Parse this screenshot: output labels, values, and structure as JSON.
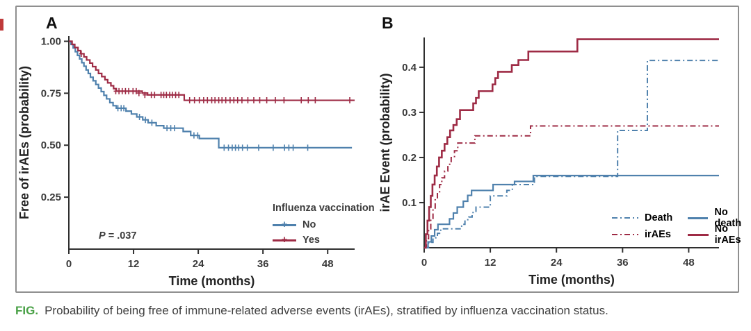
{
  "figure": {
    "caption": {
      "label": "FIG.",
      "text": "Probability of being free of immune-related adverse events (irAEs), stratified by influenza vaccination status."
    }
  },
  "palette": {
    "blue": "#4f81ad",
    "red": "#9e2b45",
    "caption_green": "#4aa147",
    "axis": "#2f2f2f",
    "border": "#8f8f8f"
  },
  "chart_data": [
    {
      "id": "A",
      "type": "line",
      "subtype": "kaplan-meier-step",
      "panel_label": "A",
      "xlabel": "Time (months)",
      "ylabel": "Free of irAEs (probability)",
      "xlim": [
        0,
        53
      ],
      "ylim": [
        0,
        1.025
      ],
      "xticks": [
        {
          "v": 0,
          "label": "0"
        },
        {
          "v": 12,
          "label": "12"
        },
        {
          "v": 24,
          "label": "24"
        },
        {
          "v": 36,
          "label": "36"
        },
        {
          "v": 48,
          "label": "48"
        }
      ],
      "yticks": [
        {
          "v": 0.25,
          "label": "0.25"
        },
        {
          "v": 0.5,
          "label": "0.50"
        },
        {
          "v": 0.75,
          "label": "0.75"
        },
        {
          "v": 1.0,
          "label": "1.00"
        }
      ],
      "grid": false,
      "annotation": {
        "p_prefix": "P",
        "p_rest": " = .037"
      },
      "legend": {
        "position": "inside bottom-right",
        "title": "Influenza vaccination",
        "items": [
          {
            "label": "No",
            "color": "#4f81ad",
            "style": "solid",
            "marker": "plus"
          },
          {
            "label": "Yes",
            "color": "#9e2b45",
            "style": "solid",
            "marker": "plus"
          }
        ]
      },
      "series": [
        {
          "name": "No",
          "color": "#4f81ad",
          "style": "solid",
          "width": 2.2,
          "end": 52.5,
          "steps": [
            [
              0,
              1.0
            ],
            [
              0.4,
              0.985
            ],
            [
              0.8,
              0.968
            ],
            [
              1.2,
              0.95
            ],
            [
              1.6,
              0.932
            ],
            [
              2.0,
              0.915
            ],
            [
              2.4,
              0.897
            ],
            [
              2.8,
              0.88
            ],
            [
              3.2,
              0.862
            ],
            [
              3.6,
              0.845
            ],
            [
              4.0,
              0.827
            ],
            [
              4.5,
              0.81
            ],
            [
              5.0,
              0.792
            ],
            [
              5.5,
              0.775
            ],
            [
              6.0,
              0.758
            ],
            [
              6.5,
              0.74
            ],
            [
              7.0,
              0.723
            ],
            [
              7.6,
              0.705
            ],
            [
              8.2,
              0.69
            ],
            [
              8.8,
              0.678
            ],
            [
              10.6,
              0.664
            ],
            [
              11.6,
              0.65
            ],
            [
              12.6,
              0.636
            ],
            [
              13.7,
              0.622
            ],
            [
              14.7,
              0.608
            ],
            [
              16.2,
              0.594
            ],
            [
              17.6,
              0.582
            ],
            [
              21.2,
              0.566
            ],
            [
              22.6,
              0.547
            ],
            [
              24.2,
              0.532
            ],
            [
              27.8,
              0.488
            ]
          ],
          "censors": [
            [
              9.1,
              0.678
            ],
            [
              9.7,
              0.678
            ],
            [
              10.2,
              0.678
            ],
            [
              13.1,
              0.636
            ],
            [
              14.2,
              0.622
            ],
            [
              15.4,
              0.608
            ],
            [
              18.2,
              0.582
            ],
            [
              18.9,
              0.582
            ],
            [
              19.6,
              0.582
            ],
            [
              23.2,
              0.547
            ],
            [
              23.9,
              0.547
            ],
            [
              28.8,
              0.488
            ],
            [
              29.6,
              0.488
            ],
            [
              30.3,
              0.488
            ],
            [
              30.9,
              0.488
            ],
            [
              31.5,
              0.488
            ],
            [
              32.2,
              0.488
            ],
            [
              33.1,
              0.488
            ],
            [
              35.2,
              0.488
            ],
            [
              37.9,
              0.488
            ],
            [
              40.0,
              0.488
            ],
            [
              40.8,
              0.488
            ],
            [
              41.6,
              0.488
            ],
            [
              44.3,
              0.488
            ]
          ]
        },
        {
          "name": "Yes",
          "color": "#9e2b45",
          "style": "solid",
          "width": 2.2,
          "end": 53,
          "steps": [
            [
              0,
              1.0
            ],
            [
              0.6,
              0.985
            ],
            [
              1.1,
              0.97
            ],
            [
              1.7,
              0.955
            ],
            [
              2.2,
              0.94
            ],
            [
              2.8,
              0.925
            ],
            [
              3.3,
              0.91
            ],
            [
              3.9,
              0.895
            ],
            [
              4.4,
              0.878
            ],
            [
              5.0,
              0.862
            ],
            [
              5.5,
              0.845
            ],
            [
              6.1,
              0.83
            ],
            [
              6.7,
              0.815
            ],
            [
              7.2,
              0.8
            ],
            [
              7.8,
              0.786
            ],
            [
              8.3,
              0.772
            ],
            [
              8.8,
              0.76
            ],
            [
              13.6,
              0.751
            ],
            [
              14.6,
              0.742
            ],
            [
              21.4,
              0.716
            ]
          ],
          "censors": [
            [
              2.3,
              0.94
            ],
            [
              8.7,
              0.76
            ],
            [
              9.3,
              0.76
            ],
            [
              9.9,
              0.76
            ],
            [
              10.5,
              0.76
            ],
            [
              11.1,
              0.76
            ],
            [
              11.9,
              0.76
            ],
            [
              12.5,
              0.76
            ],
            [
              13.0,
              0.751
            ],
            [
              14.1,
              0.742
            ],
            [
              15.3,
              0.742
            ],
            [
              15.9,
              0.742
            ],
            [
              17.1,
              0.742
            ],
            [
              17.6,
              0.742
            ],
            [
              18.1,
              0.742
            ],
            [
              18.7,
              0.742
            ],
            [
              19.2,
              0.742
            ],
            [
              19.8,
              0.742
            ],
            [
              20.4,
              0.742
            ],
            [
              22.4,
              0.716
            ],
            [
              23.3,
              0.716
            ],
            [
              24.2,
              0.716
            ],
            [
              25.0,
              0.716
            ],
            [
              25.7,
              0.716
            ],
            [
              26.5,
              0.716
            ],
            [
              27.1,
              0.716
            ],
            [
              27.8,
              0.716
            ],
            [
              28.4,
              0.716
            ],
            [
              29.1,
              0.716
            ],
            [
              29.9,
              0.716
            ],
            [
              30.6,
              0.716
            ],
            [
              31.3,
              0.716
            ],
            [
              32.1,
              0.716
            ],
            [
              33.2,
              0.716
            ],
            [
              34.3,
              0.716
            ],
            [
              35.4,
              0.716
            ],
            [
              36.7,
              0.716
            ],
            [
              38.3,
              0.716
            ],
            [
              39.9,
              0.716
            ],
            [
              43.1,
              0.716
            ],
            [
              44.4,
              0.716
            ],
            [
              45.7,
              0.716
            ],
            [
              52.1,
              0.716
            ]
          ]
        }
      ]
    },
    {
      "id": "B",
      "type": "line",
      "subtype": "cumulative-incidence-step",
      "panel_label": "B",
      "xlabel": "Time (months)",
      "ylabel": "irAE Event (probability)",
      "xlim": [
        0,
        53.5
      ],
      "ylim": [
        0,
        0.466
      ],
      "xticks": [
        {
          "v": 0,
          "label": "0"
        },
        {
          "v": 12,
          "label": "12"
        },
        {
          "v": 24,
          "label": "24"
        },
        {
          "v": 36,
          "label": "36"
        },
        {
          "v": 48,
          "label": "48"
        }
      ],
      "yticks": [
        {
          "v": 0.1,
          "label": "0.1"
        },
        {
          "v": 0.2,
          "label": "0.2"
        },
        {
          "v": 0.3,
          "label": "0.3"
        },
        {
          "v": 0.4,
          "label": "0.4"
        }
      ],
      "grid": false,
      "legend": {
        "position": "inside bottom-right",
        "title": "",
        "items": [
          {
            "label": "Death",
            "color": "#4f81ad",
            "style": "dashdot"
          },
          {
            "label": "No death",
            "color": "#4f81ad",
            "style": "solid"
          },
          {
            "label": "irAEs",
            "color": "#9e2b45",
            "style": "dashdot"
          },
          {
            "label": "No irAEs",
            "color": "#9e2b45",
            "style": "solid"
          }
        ]
      },
      "series": [
        {
          "name": "Death",
          "color": "#4f81ad",
          "style": "dashdot",
          "width": 2,
          "end": 53.5,
          "steps": [
            [
              0,
              0
            ],
            [
              0.8,
              0.012
            ],
            [
              1.6,
              0.022
            ],
            [
              2.4,
              0.032
            ],
            [
              3.0,
              0.042
            ],
            [
              6.8,
              0.052
            ],
            [
              7.4,
              0.062
            ],
            [
              8.1,
              0.068
            ],
            [
              8.7,
              0.078
            ],
            [
              9.4,
              0.09
            ],
            [
              12.0,
              0.115
            ],
            [
              15.0,
              0.127
            ],
            [
              16.0,
              0.14
            ],
            [
              20.0,
              0.158
            ],
            [
              35.1,
              0.26
            ],
            [
              40.5,
              0.415
            ]
          ],
          "censors": []
        },
        {
          "name": "irAEs",
          "color": "#9e2b45",
          "style": "dashdot",
          "width": 2,
          "end": 53.5,
          "steps": [
            [
              0,
              0
            ],
            [
              0.4,
              0.02
            ],
            [
              0.8,
              0.042
            ],
            [
              1.2,
              0.065
            ],
            [
              1.6,
              0.088
            ],
            [
              2.0,
              0.108
            ],
            [
              2.4,
              0.124
            ],
            [
              2.8,
              0.14
            ],
            [
              3.2,
              0.155
            ],
            [
              3.7,
              0.17
            ],
            [
              4.3,
              0.185
            ],
            [
              4.9,
              0.2
            ],
            [
              5.5,
              0.215
            ],
            [
              6.1,
              0.232
            ],
            [
              9.2,
              0.248
            ],
            [
              19.3,
              0.27
            ]
          ],
          "censors": []
        },
        {
          "name": "No death",
          "color": "#4f81ad",
          "style": "solid",
          "width": 2.2,
          "end": 53.5,
          "steps": [
            [
              0,
              0
            ],
            [
              0.7,
              0.013
            ],
            [
              1.3,
              0.026
            ],
            [
              1.9,
              0.04
            ],
            [
              2.5,
              0.052
            ],
            [
              4.6,
              0.064
            ],
            [
              5.3,
              0.077
            ],
            [
              6.0,
              0.09
            ],
            [
              7.1,
              0.103
            ],
            [
              7.9,
              0.116
            ],
            [
              8.6,
              0.127
            ],
            [
              12.5,
              0.14
            ],
            [
              16.4,
              0.147
            ],
            [
              19.8,
              0.16
            ]
          ],
          "censors": []
        },
        {
          "name": "No irAEs",
          "color": "#9e2b45",
          "style": "solid",
          "width": 2.6,
          "end": 53.5,
          "steps": [
            [
              0,
              0
            ],
            [
              0.3,
              0.03
            ],
            [
              0.6,
              0.06
            ],
            [
              0.9,
              0.09
            ],
            [
              1.2,
              0.115
            ],
            [
              1.5,
              0.14
            ],
            [
              1.9,
              0.16
            ],
            [
              2.3,
              0.18
            ],
            [
              2.7,
              0.2
            ],
            [
              3.2,
              0.215
            ],
            [
              3.7,
              0.23
            ],
            [
              4.2,
              0.245
            ],
            [
              4.7,
              0.26
            ],
            [
              5.3,
              0.272
            ],
            [
              5.9,
              0.285
            ],
            [
              6.5,
              0.305
            ],
            [
              8.9,
              0.32
            ],
            [
              9.4,
              0.332
            ],
            [
              9.9,
              0.347
            ],
            [
              12.4,
              0.362
            ],
            [
              12.9,
              0.376
            ],
            [
              13.4,
              0.39
            ],
            [
              15.9,
              0.405
            ],
            [
              17.1,
              0.416
            ],
            [
              18.9,
              0.435
            ],
            [
              27.8,
              0.462
            ]
          ],
          "censors": []
        }
      ]
    }
  ]
}
